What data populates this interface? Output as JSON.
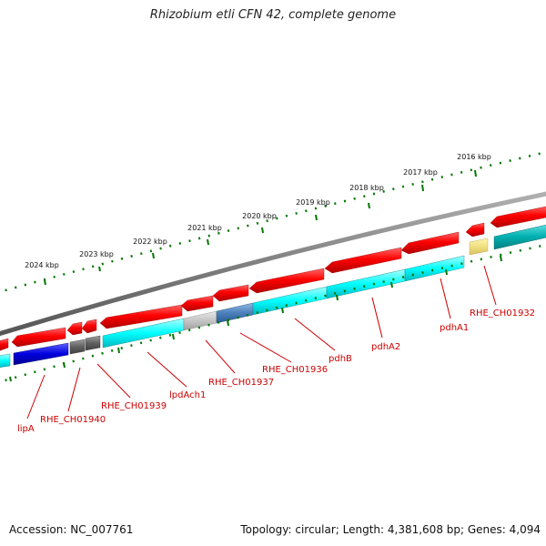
{
  "title": "Rhizobium etli CFN 42, complete genome",
  "footer": {
    "accession": "Accession: NC_007761",
    "summary": "Topology: circular; Length: 4,381,608 bp; Genes: 4,094"
  },
  "ruler": {
    "labels": [
      "2024 kbp",
      "2023 kbp",
      "2022 kbp",
      "2021 kbp",
      "2020 kbp",
      "2019 kbp",
      "2018 kbp",
      "2017 kbp",
      "2016 kbp"
    ]
  },
  "gene_labels": [
    "lipA",
    "RHE_CH01940",
    "RHE_CH01939",
    "lpdAch1",
    "RHE_CH01937",
    "RHE_CH01936",
    "pdhB",
    "pdhA2",
    "pdhA1",
    "RHE_CH01932"
  ],
  "colors": {
    "backbone": "#808080",
    "forward_gene": "#ff0000",
    "cds": "#00ffff",
    "cds_alt": "#4080c0",
    "grey_feature": "#606060",
    "light_grey_feature": "#c0c0c0",
    "blue_feature": "#0000dd",
    "yellow_feature": "#f0e080",
    "teal_feature": "#00b0b0",
    "ruler_tick": "#007700",
    "label_red": "#cc0000"
  }
}
